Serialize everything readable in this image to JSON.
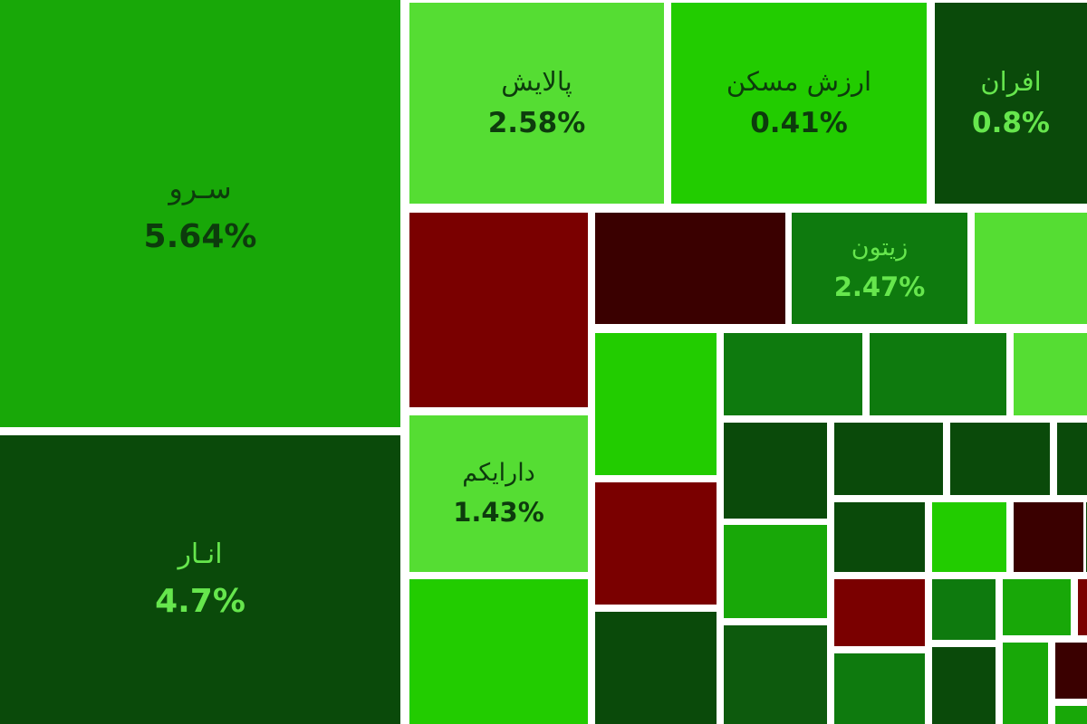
{
  "chart_data": {
    "type": "treemap",
    "title": "",
    "palette": {
      "light_green": "#55dd33",
      "bright_green": "#22cc00",
      "green": "#18a808",
      "mid_green": "#0e7a0e",
      "dark_green": "#0a4a0a",
      "deep_green": "#0d5a0d",
      "red": "#7a0000",
      "dark_red": "#3a0000",
      "label_dark": "#0d3b0d",
      "label_light": "#66e64d"
    },
    "tiles": [
      {
        "name": "سـرو",
        "value": "5.64%",
        "change_pct": 5.64,
        "color": "green",
        "label_color": "label_dark",
        "labeled": true
      },
      {
        "name": "انـار",
        "value": "4.7%",
        "change_pct": 4.7,
        "color": "dark_green",
        "label_color": "label_light",
        "labeled": true
      },
      {
        "name": "پالایش",
        "value": "2.58%",
        "change_pct": 2.58,
        "color": "light_green",
        "label_color": "label_dark",
        "labeled": true
      },
      {
        "name": "ارزش مسکن",
        "value": "0.41%",
        "change_pct": 0.41,
        "color": "bright_green",
        "label_color": "label_dark",
        "labeled": true
      },
      {
        "name": "افران",
        "value": "0.8%",
        "change_pct": 0.8,
        "color": "dark_green",
        "label_color": "label_light",
        "labeled": true
      },
      {
        "name": "زیتون",
        "value": "2.47%",
        "change_pct": 2.47,
        "color": "mid_green",
        "label_color": "label_light",
        "labeled": true
      },
      {
        "name": "دارایکم",
        "value": "1.43%",
        "change_pct": 1.43,
        "color": "light_green",
        "label_color": "label_dark",
        "labeled": true
      },
      {
        "color": "red",
        "labeled": false
      },
      {
        "color": "dark_red",
        "labeled": false
      },
      {
        "color": "light_green",
        "labeled": false
      },
      {
        "color": "bright_green",
        "labeled": false
      },
      {
        "color": "bright_green",
        "labeled": false
      },
      {
        "color": "mid_green",
        "labeled": false
      },
      {
        "color": "mid_green",
        "labeled": false
      },
      {
        "color": "light_green",
        "labeled": false
      },
      {
        "color": "red",
        "labeled": false
      },
      {
        "color": "dark_green",
        "labeled": false
      },
      {
        "color": "dark_green",
        "labeled": false
      },
      {
        "color": "dark_green",
        "labeled": false
      },
      {
        "color": "dark_green",
        "labeled": false
      },
      {
        "color": "dark_green",
        "labeled": false
      },
      {
        "color": "green",
        "labeled": false
      },
      {
        "color": "dark_green",
        "labeled": false
      },
      {
        "color": "bright_green",
        "labeled": false
      },
      {
        "color": "dark_red",
        "labeled": false
      },
      {
        "color": "deep_green",
        "labeled": false
      },
      {
        "color": "dark_green",
        "labeled": false
      },
      {
        "color": "red",
        "labeled": false
      },
      {
        "color": "mid_green",
        "labeled": false
      },
      {
        "color": "green",
        "labeled": false
      },
      {
        "color": "red",
        "labeled": false
      },
      {
        "color": "mid_green",
        "labeled": false
      },
      {
        "color": "dark_green",
        "labeled": false
      },
      {
        "color": "green",
        "labeled": false
      },
      {
        "color": "dark_red",
        "labeled": false
      },
      {
        "color": "green",
        "labeled": false
      }
    ]
  }
}
